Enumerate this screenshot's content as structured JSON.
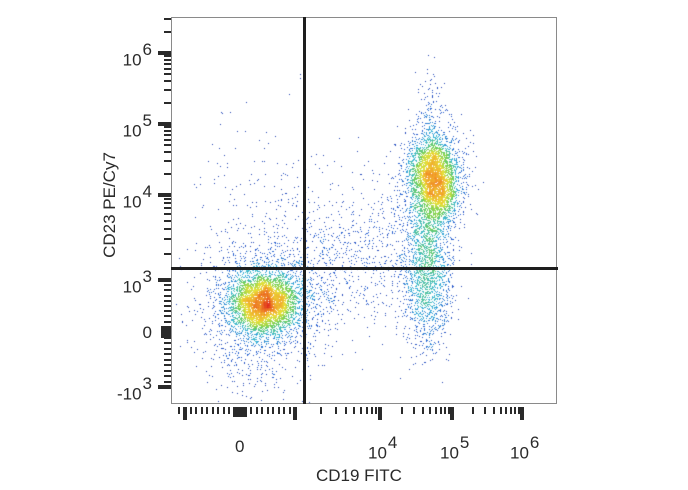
{
  "chart_data": {
    "type": "scatter",
    "subtype": "flow-cytometry-pseudocolor-density",
    "title": "",
    "xlabel": "CD19 FITC",
    "ylabel": "CD23 PE/Cy7",
    "x_scale": "biexponential",
    "y_scale": "biexponential",
    "x_tick_labels": [
      {
        "base": "0",
        "exp": "",
        "value": 0
      },
      {
        "base": "10",
        "exp": "4",
        "value": 10000
      },
      {
        "base": "10",
        "exp": "5",
        "value": 100000
      },
      {
        "base": "10",
        "exp": "6",
        "value": 1000000
      }
    ],
    "y_tick_labels": [
      {
        "base": "10",
        "exp": "6",
        "value": 1000000
      },
      {
        "base": "10",
        "exp": "5",
        "value": 100000
      },
      {
        "base": "10",
        "exp": "4",
        "value": 10000
      },
      {
        "base": "10",
        "exp": "3",
        "value": 1000
      },
      {
        "base": "0",
        "exp": "",
        "value": 0
      },
      {
        "base": "-10",
        "exp": "3",
        "value": -1000
      }
    ],
    "xlim": [
      -2000,
      2000000
    ],
    "ylim": [
      -1500,
      3000000
    ],
    "quadrant_gates": {
      "x": 2000,
      "y": 1500
    },
    "populations": [
      {
        "name": "CD19- CD23- (lower-left)",
        "center_x": 300,
        "center_y": 500,
        "relative_density": "high"
      },
      {
        "name": "CD19+ CD23+ (upper-right)",
        "center_x": 55000,
        "center_y": 18000,
        "relative_density": "high"
      },
      {
        "name": "CD19+ CD23 low tail",
        "center_x": 45000,
        "center_y": 2000,
        "relative_density": "medium"
      },
      {
        "name": "scattered bridge events",
        "center_x": 5000,
        "center_y": 2000,
        "relative_density": "low"
      }
    ],
    "color_scale": [
      "#1f2f9e",
      "#2a5fd0",
      "#3cb7d9",
      "#6fcf5a",
      "#e8e23a",
      "#f2a12b",
      "#e02a1c"
    ],
    "grid": false,
    "legend": null
  },
  "axes": {
    "x_title": "CD19 FITC",
    "y_title": "CD23 PE/Cy7"
  }
}
